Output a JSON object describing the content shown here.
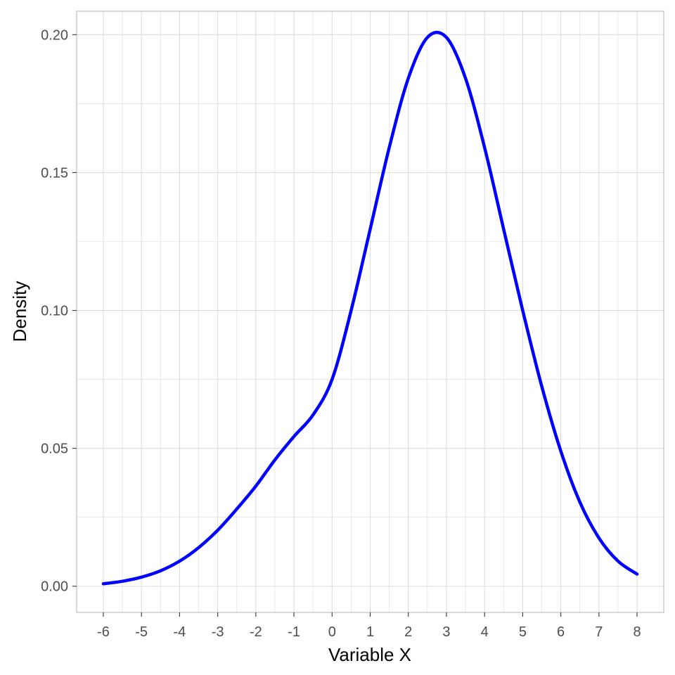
{
  "chart_data": {
    "type": "line",
    "title": "",
    "xlabel": "Variable X",
    "ylabel": "Density",
    "xlim": [
      -6.7,
      8.7
    ],
    "ylim": [
      -0.0095,
      0.2085
    ],
    "x_ticks": [
      -6,
      -5,
      -4,
      -3,
      -2,
      -1,
      0,
      1,
      2,
      3,
      4,
      5,
      6,
      7,
      8
    ],
    "x_tick_labels": [
      "-6",
      "-5",
      "-4",
      "-3",
      "-2",
      "-1",
      "0",
      "1",
      "2",
      "3",
      "4",
      "5",
      "6",
      "7",
      "8"
    ],
    "y_ticks": [
      0,
      0.05,
      0.1,
      0.15,
      0.2
    ],
    "y_tick_labels": [
      "0.00",
      "0.05",
      "0.10",
      "0.15",
      "0.20"
    ],
    "grid": true,
    "legend": "none",
    "line_color": "#0000ff",
    "grid_color": "#dddddd",
    "panel_border_color": "#b3b3b3",
    "series": [
      {
        "x": [
          -6,
          -5.5,
          -5,
          -4.5,
          -4,
          -3.5,
          -3,
          -2.5,
          -2,
          -1.5,
          -1,
          -0.5,
          0,
          0.5,
          1,
          1.5,
          2,
          2.5,
          3,
          3.5,
          4,
          4.5,
          5,
          5.5,
          6,
          6.5,
          7,
          7.5,
          8
        ],
        "values": [
          0.0009,
          0.0018,
          0.0033,
          0.0056,
          0.0091,
          0.014,
          0.0203,
          0.028,
          0.0363,
          0.0458,
          0.0543,
          0.0621,
          0.075,
          0.1,
          0.1295,
          0.1591,
          0.1842,
          0.199,
          0.199,
          0.1842,
          0.1591,
          0.1295,
          0.1,
          0.0725,
          0.049,
          0.0305,
          0.0175,
          0.0091,
          0.0044
        ]
      }
    ]
  }
}
